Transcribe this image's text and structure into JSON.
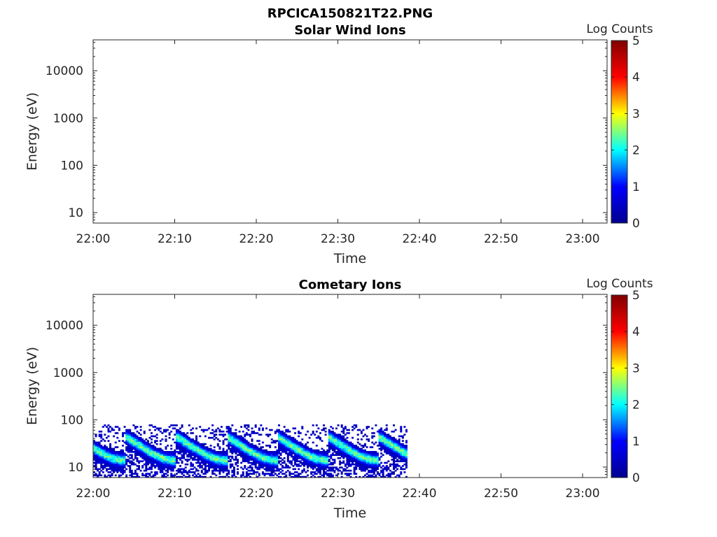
{
  "figure_title": "RPCICA150821T22.PNG",
  "colorbar_label": "Log Counts",
  "colorbar_ticks": [
    "0",
    "1",
    "2",
    "3",
    "4",
    "5"
  ],
  "colormap": [
    "#00008f",
    "#0000ff",
    "#00ffff",
    "#ffff00",
    "#ff0000",
    "#800000"
  ],
  "chart_data": [
    {
      "type": "heatmap",
      "title": "Solar Wind Ions",
      "xlabel": "Time",
      "ylabel": "Energy (eV)",
      "x_ticks": [
        "22:00",
        "22:10",
        "22:20",
        "22:30",
        "22:40",
        "22:50",
        "23:00"
      ],
      "x_range": [
        "22:00",
        "23:03"
      ],
      "y_ticks": [
        "10",
        "100",
        "1000",
        "10000"
      ],
      "y_scale": "log",
      "y_range": [
        6,
        45000
      ],
      "color_range": [
        0,
        5
      ],
      "data": "empty"
    },
    {
      "type": "heatmap",
      "title": "Cometary Ions",
      "xlabel": "Time",
      "ylabel": "Energy (eV)",
      "x_ticks": [
        "22:00",
        "22:10",
        "22:20",
        "22:30",
        "22:40",
        "22:50",
        "23:00"
      ],
      "x_range": [
        "22:00",
        "23:03"
      ],
      "y_ticks": [
        "10",
        "100",
        "1000",
        "10000"
      ],
      "y_scale": "log",
      "y_range": [
        6,
        45000
      ],
      "color_range": [
        0,
        5
      ],
      "data_time_range": [
        "22:00",
        "22:38.5"
      ],
      "data_energy_range": [
        6,
        80
      ],
      "peak_log_counts": 2.8
    }
  ]
}
